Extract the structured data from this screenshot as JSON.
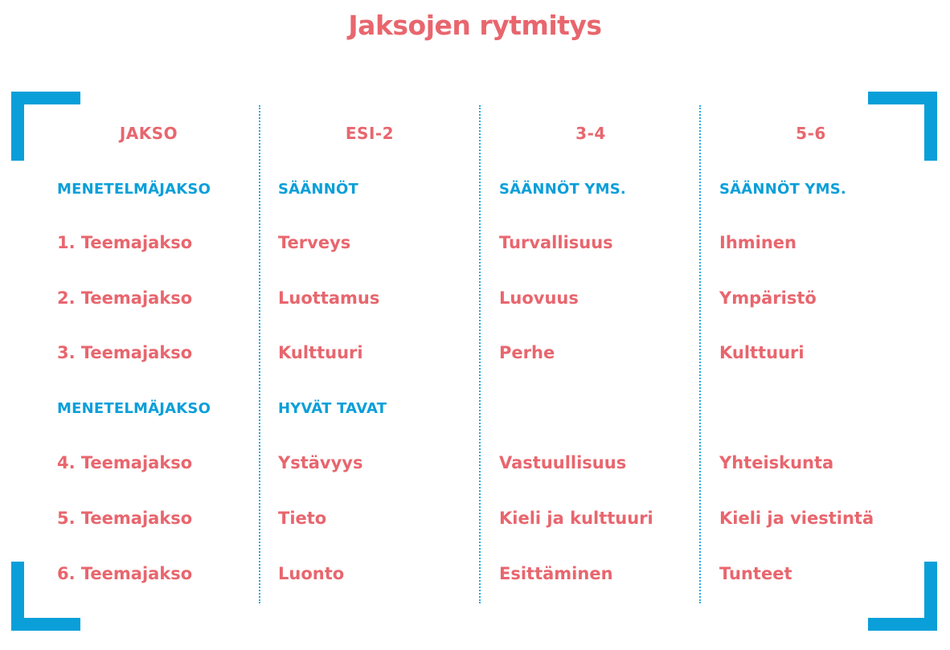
{
  "title": "Jaksojen rytmitys",
  "colors": {
    "accent_pink": "#e8666e",
    "accent_blue": "#0a9fd9"
  },
  "columns": [
    {
      "header": "JAKSO",
      "rows": [
        {
          "text": "MENETELMÄJAKSO",
          "kind": "method"
        },
        {
          "text": "1. Teemajakso",
          "kind": "topic"
        },
        {
          "text": "2. Teemajakso",
          "kind": "topic"
        },
        {
          "text": "3. Teemajakso",
          "kind": "topic"
        },
        {
          "text": "MENETELMÄJAKSO",
          "kind": "method"
        },
        {
          "text": "4. Teemajakso",
          "kind": "topic"
        },
        {
          "text": "5. Teemajakso",
          "kind": "topic"
        },
        {
          "text": "6. Teemajakso",
          "kind": "topic"
        }
      ]
    },
    {
      "header": "ESI-2",
      "rows": [
        {
          "text": "SÄÄNNÖT",
          "kind": "method"
        },
        {
          "text": "Terveys",
          "kind": "topic"
        },
        {
          "text": "Luottamus",
          "kind": "topic"
        },
        {
          "text": "Kulttuuri",
          "kind": "topic"
        },
        {
          "text": "HYVÄT TAVAT",
          "kind": "method"
        },
        {
          "text": "Ystävyys",
          "kind": "topic"
        },
        {
          "text": "Tieto",
          "kind": "topic"
        },
        {
          "text": "Luonto",
          "kind": "topic"
        }
      ]
    },
    {
      "header": "3-4",
      "rows": [
        {
          "text": "SÄÄNNÖT YMS.",
          "kind": "method"
        },
        {
          "text": "Turvallisuus",
          "kind": "topic"
        },
        {
          "text": "Luovuus",
          "kind": "topic"
        },
        {
          "text": "Perhe",
          "kind": "topic"
        },
        {
          "text": "",
          "kind": "method"
        },
        {
          "text": "Vastuullisuus",
          "kind": "topic"
        },
        {
          "text": "Kieli ja kulttuuri",
          "kind": "topic"
        },
        {
          "text": "Esittäminen",
          "kind": "topic"
        }
      ]
    },
    {
      "header": "5-6",
      "rows": [
        {
          "text": "SÄÄNNÖT YMS.",
          "kind": "method"
        },
        {
          "text": "Ihminen",
          "kind": "topic"
        },
        {
          "text": "Ympäristö",
          "kind": "topic"
        },
        {
          "text": "Kulttuuri",
          "kind": "topic"
        },
        {
          "text": "",
          "kind": "method"
        },
        {
          "text": "Yhteiskunta",
          "kind": "topic"
        },
        {
          "text": "Kieli ja viestintä",
          "kind": "topic"
        },
        {
          "text": "Tunteet",
          "kind": "topic"
        }
      ]
    }
  ]
}
